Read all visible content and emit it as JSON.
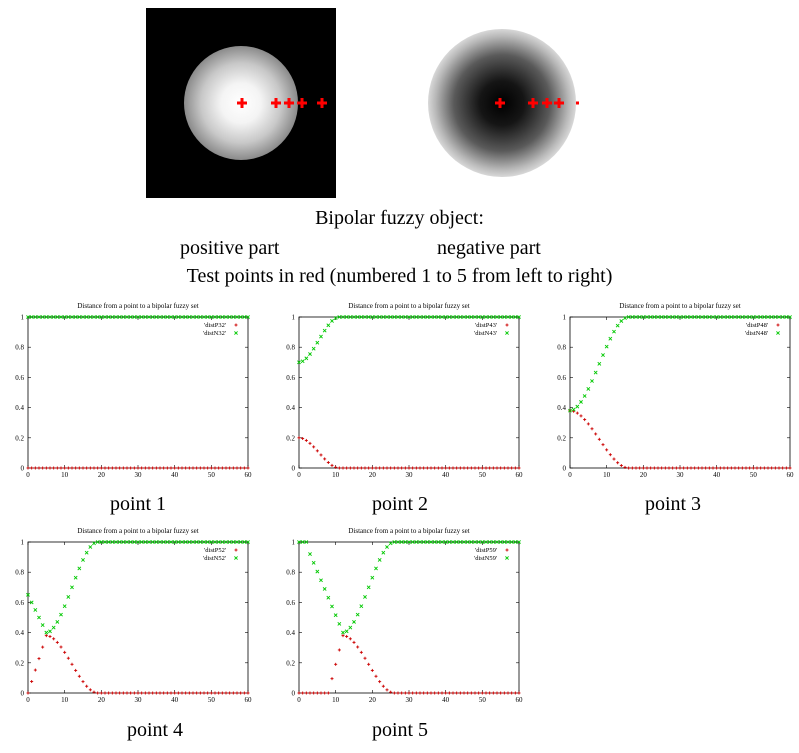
{
  "caption": {
    "line1": "Bipolar fuzzy object:",
    "positive": "positive part",
    "negative": "negative part",
    "line3": "Test points in red (numbered 1 to 5 from left to right)"
  },
  "colors": {
    "positive_series": "#cc0000",
    "negative_series": "#00c800",
    "test_points": "#ff0000"
  },
  "chart_data": [
    {
      "type": "scatter",
      "title": "Distance from a point to a bipolar fuzzy set",
      "label": "point 1",
      "xlim": [
        0,
        60
      ],
      "ylim": [
        0,
        1
      ],
      "xticks": [
        0,
        10,
        20,
        30,
        40,
        50,
        60
      ],
      "yticks": [
        0,
        0.2,
        0.4,
        0.6,
        0.8,
        1
      ],
      "legend": "top-right",
      "series": [
        {
          "name": "'distP32'",
          "pattern": {
            "kind": "const",
            "v": 0
          }
        },
        {
          "name": "'distN32'",
          "pattern": {
            "kind": "const",
            "v": 1
          }
        }
      ]
    },
    {
      "type": "scatter",
      "title": "Distance from a point to a bipolar fuzzy set",
      "label": "point 2",
      "xlim": [
        0,
        60
      ],
      "ylim": [
        0,
        1
      ],
      "xticks": [
        0,
        10,
        20,
        30,
        40,
        50,
        60
      ],
      "yticks": [
        0,
        0.2,
        0.4,
        0.6,
        0.8,
        1
      ],
      "legend": "top-right",
      "series": [
        {
          "name": "'distP43'",
          "pattern": {
            "kind": "down",
            "x0": 0,
            "v0": 0.2,
            "x1": 11
          }
        },
        {
          "name": "'distN43'",
          "pattern": {
            "kind": "up",
            "x0": 0,
            "v0": 0.7,
            "x1": 11
          }
        }
      ]
    },
    {
      "type": "scatter",
      "title": "Distance from a point to a bipolar fuzzy set",
      "label": "point 3",
      "xlim": [
        0,
        60
      ],
      "ylim": [
        0,
        1
      ],
      "xticks": [
        0,
        10,
        20,
        30,
        40,
        50,
        60
      ],
      "yticks": [
        0,
        0.2,
        0.4,
        0.6,
        0.8,
        1
      ],
      "legend": "top-right",
      "series": [
        {
          "name": "'distP48'",
          "pattern": {
            "kind": "down",
            "x0": 0,
            "v0": 0.38,
            "x1": 16
          }
        },
        {
          "name": "'distN48'",
          "pattern": {
            "kind": "up",
            "x0": 0,
            "v0": 0.38,
            "x1": 16
          }
        }
      ]
    },
    {
      "type": "scatter",
      "title": "Distance from a point to a bipolar fuzzy set",
      "label": "point 4",
      "xlim": [
        0,
        60
      ],
      "ylim": [
        0,
        1
      ],
      "xticks": [
        0,
        10,
        20,
        30,
        40,
        50,
        60
      ],
      "yticks": [
        0,
        0.2,
        0.4,
        0.6,
        0.8,
        1
      ],
      "legend": "top-right",
      "series": [
        {
          "name": "'distP52'",
          "pattern": {
            "kind": "hump",
            "xs": 0,
            "xp": 5,
            "vp": 0.38,
            "x1": 19
          }
        },
        {
          "name": "'distN52'",
          "pattern": {
            "kind": "vee",
            "xs": 0,
            "vs": 0.65,
            "xp": 5,
            "vp": 0.4,
            "x1": 19
          }
        }
      ]
    },
    {
      "type": "scatter",
      "title": "Distance from a point to a bipolar fuzzy set",
      "label": "point 5",
      "xlim": [
        0,
        60
      ],
      "ylim": [
        0,
        1
      ],
      "xticks": [
        0,
        10,
        20,
        30,
        40,
        50,
        60
      ],
      "yticks": [
        0,
        0.2,
        0.4,
        0.6,
        0.8,
        1
      ],
      "legend": "top-right",
      "series": [
        {
          "name": "'distP59'",
          "pattern": {
            "kind": "hump",
            "xs": 8,
            "xp": 12,
            "vp": 0.38,
            "x1": 26
          }
        },
        {
          "name": "'distN59'",
          "pattern": {
            "kind": "vee",
            "xs": 3,
            "vs": 0.92,
            "xp": 12,
            "vp": 0.4,
            "x1": 26
          }
        }
      ]
    }
  ]
}
